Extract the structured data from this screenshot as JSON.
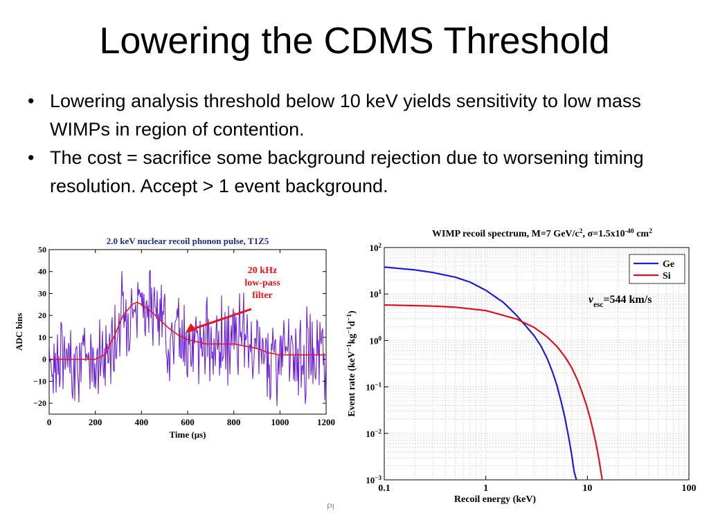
{
  "slide": {
    "title": "Lowering the CDMS Threshold",
    "bullets": [
      "Lowering analysis threshold below 10 keV yields sensitivity to low mass WIMPs in region of contention.",
      "The cost = sacrifice some background rejection due to worsening timing resolution.   Accept > 1 event background."
    ],
    "footer": "Pl"
  },
  "chart_data": [
    {
      "type": "line",
      "title": "2.0 keV nuclear recoil phonon pulse, T1Z5",
      "xlabel": "Time (μs)",
      "ylabel": "ADC bins",
      "xlim": [
        0,
        1200
      ],
      "ylim": [
        -25,
        50
      ],
      "xticks": [
        0,
        200,
        400,
        600,
        800,
        1000,
        1200
      ],
      "xtick_labels": [
        "0",
        "200",
        "400",
        "600",
        "800",
        "1000",
        "1200"
      ],
      "yticks": [
        -20,
        -10,
        0,
        10,
        20,
        30,
        40,
        50
      ],
      "ytick_labels": [
        "−20",
        "−10",
        "0",
        "10",
        "20",
        "30",
        "40",
        "50"
      ],
      "annotation": {
        "lines": [
          "20 kHz",
          "low-pass",
          "filter"
        ],
        "color": "#e8141b",
        "arrow_to": [
          590,
          12
        ]
      },
      "grid": false,
      "series": [
        {
          "name": "",
          "color": "#6a1fe0",
          "noisy": true,
          "noise_amplitude": 9,
          "x": [
            0,
            100,
            200,
            240,
            280,
            320,
            360,
            380,
            400,
            440,
            480,
            520,
            560,
            600,
            640,
            680,
            720,
            760,
            800,
            850,
            900,
            950,
            1000,
            1100,
            1200
          ],
          "y": [
            0,
            0,
            0,
            2,
            10,
            20,
            25,
            26,
            25,
            22,
            18,
            14,
            11,
            9,
            8,
            7,
            7,
            7,
            7,
            6,
            5,
            3,
            2,
            2,
            2
          ]
        },
        {
          "name": "",
          "color": "#e8141b",
          "x": [
            0,
            100,
            200,
            240,
            280,
            320,
            360,
            380,
            400,
            440,
            480,
            520,
            560,
            600,
            640,
            680,
            720,
            760,
            800,
            850,
            900,
            950,
            1000,
            1100,
            1200
          ],
          "y": [
            0,
            0,
            0,
            2,
            10,
            20,
            25,
            26,
            25,
            22,
            18,
            14,
            11,
            9,
            8,
            7,
            7,
            7,
            7,
            6,
            5,
            3,
            2,
            2,
            2
          ]
        }
      ]
    },
    {
      "type": "line",
      "title_parts": [
        {
          "t": "WIMP recoil spectrum, M=7 GeV/c",
          "s": "n"
        },
        {
          "t": "2",
          "s": "sup"
        },
        {
          "t": ", σ=1.5x10",
          "s": "n"
        },
        {
          "t": "-40",
          "s": "sup"
        },
        {
          "t": " cm",
          "s": "n"
        },
        {
          "t": "2",
          "s": "sup"
        }
      ],
      "xlabel": "Recoil energy (keV)",
      "ylabel_parts": [
        {
          "t": "Event rate (keV",
          "s": "n"
        },
        {
          "t": "−1",
          "s": "sup"
        },
        {
          "t": "kg",
          "s": "n"
        },
        {
          "t": "−1",
          "s": "sup"
        },
        {
          "t": "d",
          "s": "n"
        },
        {
          "t": "−1",
          "s": "sup"
        },
        {
          "t": ")",
          "s": "n"
        }
      ],
      "xscale": "log",
      "yscale": "log",
      "xlim": [
        0.1,
        100
      ],
      "ylim": [
        0.001,
        100
      ],
      "xtick_labels": [
        "0.1",
        "1",
        "10",
        "100"
      ],
      "ytick_exponents": [
        "2",
        "1",
        "0",
        "−1",
        "−2",
        "−3"
      ],
      "ytick_base": "10",
      "grid": true,
      "legend_position": "top-right",
      "annotation_parts": [
        {
          "t": "v",
          "s": "i"
        },
        {
          "t": "esc",
          "s": "sub"
        },
        {
          "t": "=544 km/s",
          "s": "n"
        }
      ],
      "series": [
        {
          "name": "Ge",
          "color": "#1a1adb",
          "x": [
            0.1,
            0.2,
            0.3,
            0.5,
            0.7,
            1.0,
            1.5,
            2.0,
            2.5,
            3.0,
            3.5,
            4.0,
            4.5,
            5.0,
            5.5,
            6.0,
            6.5,
            7.0,
            7.4,
            7.8
          ],
          "y": [
            38,
            33,
            29,
            23,
            18,
            12,
            6.5,
            3.5,
            2.0,
            1.25,
            0.75,
            0.42,
            0.22,
            0.11,
            0.05,
            0.022,
            0.009,
            0.0035,
            0.0015,
            0.001
          ]
        },
        {
          "name": "Si",
          "color": "#e0101a",
          "x": [
            0.1,
            0.3,
            0.5,
            1.0,
            2.0,
            3.0,
            4.0,
            5.0,
            6.0,
            7.0,
            8.0,
            9.0,
            10.0,
            11.0,
            12.0,
            13.0,
            14.0
          ],
          "y": [
            5.8,
            5.5,
            5.2,
            4.4,
            2.9,
            1.9,
            1.2,
            0.75,
            0.45,
            0.26,
            0.14,
            0.07,
            0.035,
            0.016,
            0.007,
            0.0028,
            0.001
          ]
        }
      ]
    }
  ]
}
